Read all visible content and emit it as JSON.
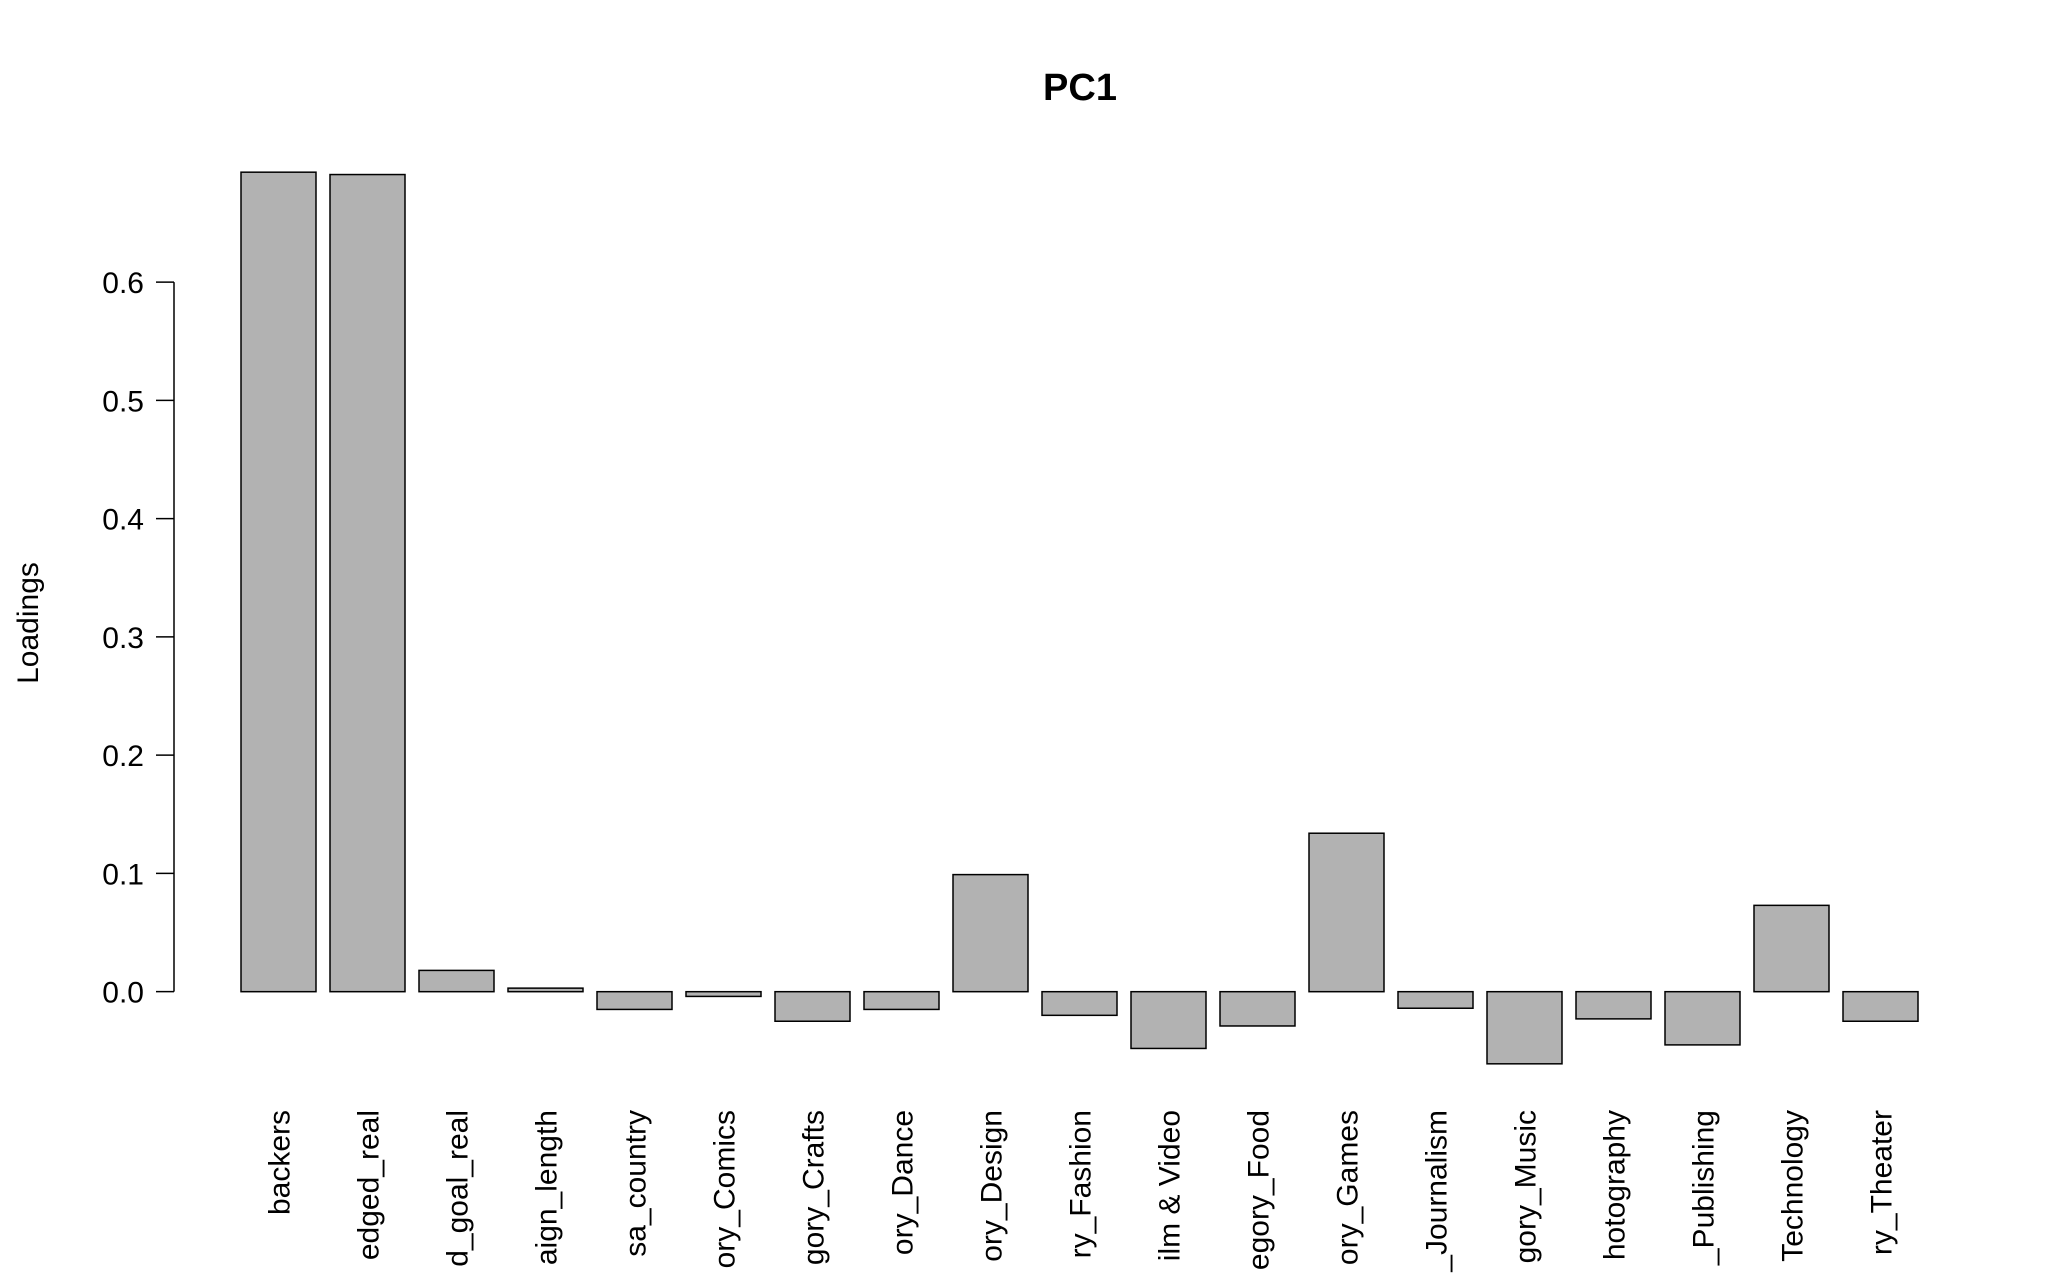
{
  "chart_data": {
    "type": "bar",
    "title": "PC1",
    "y_label": "Loadings",
    "categories": [
      "backers",
      "edged_real",
      "d_goal_real",
      "aign_length",
      "sa_country",
      "ory_Comics",
      "gory_Crafts",
      "ory_Dance",
      "ory_Design",
      "ry_Fashion",
      "ilm & Video",
      "egory_Food",
      "ory_Games",
      "_Journalism",
      "gory_Music",
      "hotography",
      "_Publishing",
      "Technology",
      "ry_Theater"
    ],
    "values": [
      0.693,
      0.691,
      0.018,
      0.003,
      -0.015,
      -0.004,
      -0.025,
      -0.015,
      0.099,
      -0.02,
      -0.048,
      -0.029,
      0.134,
      -0.014,
      -0.061,
      -0.023,
      -0.045,
      0.073,
      -0.025
    ],
    "color": "#b2b2b2",
    "ylim": [
      -0.062,
      0.694
    ],
    "yticks": [
      {
        "value": 0,
        "label": "0.0"
      },
      0.1,
      0.2,
      0.3,
      0.4,
      0.5,
      0.6
    ],
    "grid": false
  }
}
